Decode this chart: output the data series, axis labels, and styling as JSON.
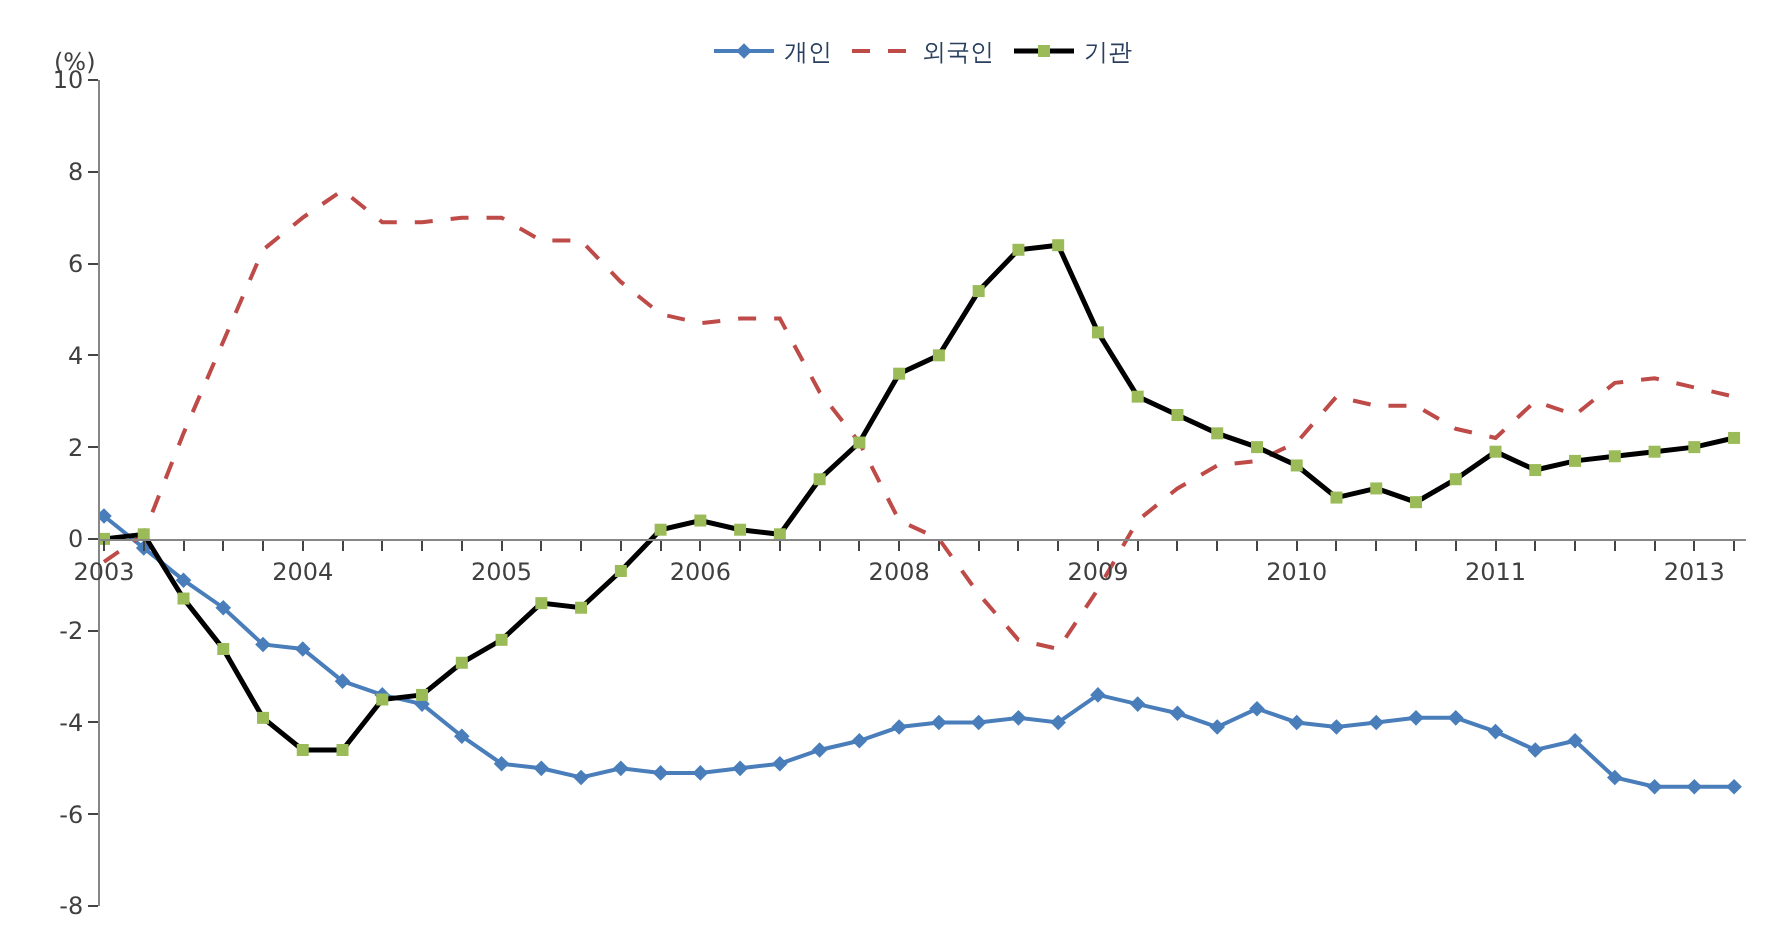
{
  "chart_data": {
    "type": "line",
    "ylabel": "(%)",
    "categories": [
      "2003",
      null,
      null,
      null,
      null,
      "2004",
      null,
      null,
      null,
      null,
      "2005",
      null,
      null,
      null,
      null,
      "2006",
      null,
      null,
      null,
      null,
      "2008",
      null,
      null,
      null,
      null,
      "2009",
      null,
      null,
      null,
      null,
      "2010",
      null,
      null,
      null,
      null,
      "2011",
      null,
      null,
      null,
      null,
      "2013",
      null
    ],
    "series": [
      {
        "name": "개인",
        "color": "#4a7ebb",
        "marker": "diamond",
        "line_style": "solid",
        "values": [
          0.5,
          -0.2,
          -0.9,
          -1.5,
          -2.3,
          -2.4,
          -3.1,
          -3.4,
          -3.6,
          -4.3,
          -4.9,
          -5.0,
          -5.2,
          -5.0,
          -5.1,
          -5.1,
          -5.0,
          -4.9,
          -4.6,
          -4.4,
          -4.1,
          -4.0,
          -4.0,
          -3.9,
          -4.0,
          -3.4,
          -3.6,
          -3.8,
          -4.1,
          -3.7,
          -4.0,
          -4.1,
          -4.0,
          -3.9,
          -3.9,
          -4.2,
          -4.6,
          -4.4,
          -5.2,
          -5.4,
          -5.4,
          -5.4
        ]
      },
      {
        "name": "외국인",
        "color": "#be4b48",
        "marker": "none",
        "line_style": "dashed",
        "values": [
          -0.5,
          0.1,
          2.3,
          4.3,
          6.3,
          7.0,
          7.6,
          6.9,
          6.9,
          7.0,
          7.0,
          6.5,
          6.5,
          5.6,
          4.9,
          4.7,
          4.8,
          4.8,
          3.2,
          2.1,
          0.4,
          0.0,
          -1.2,
          -2.2,
          -2.4,
          -1.1,
          0.4,
          1.1,
          1.6,
          1.7,
          2.1,
          3.1,
          2.9,
          2.9,
          2.4,
          2.2,
          3.0,
          2.7,
          3.4,
          3.5,
          3.3,
          3.1
        ]
      },
      {
        "name": "기관",
        "color": "#000000",
        "marker": "square",
        "line_style": "solid",
        "values": [
          0.0,
          0.1,
          -1.3,
          -2.4,
          -3.9,
          -4.6,
          -4.6,
          -3.5,
          -3.4,
          -2.7,
          -2.2,
          -1.4,
          -1.5,
          -0.7,
          0.2,
          0.4,
          0.2,
          0.1,
          1.3,
          2.1,
          3.6,
          4.0,
          5.4,
          6.3,
          6.4,
          4.5,
          3.1,
          2.7,
          2.3,
          2.0,
          1.6,
          0.9,
          1.1,
          0.8,
          1.3,
          1.9,
          1.5,
          1.7,
          1.8,
          1.9,
          2.0,
          2.2
        ]
      }
    ],
    "ylim": [
      -8,
      10
    ],
    "yticks": [
      -8,
      -6,
      -4,
      -2,
      0,
      2,
      4,
      6,
      8,
      10
    ],
    "legend": "top"
  }
}
